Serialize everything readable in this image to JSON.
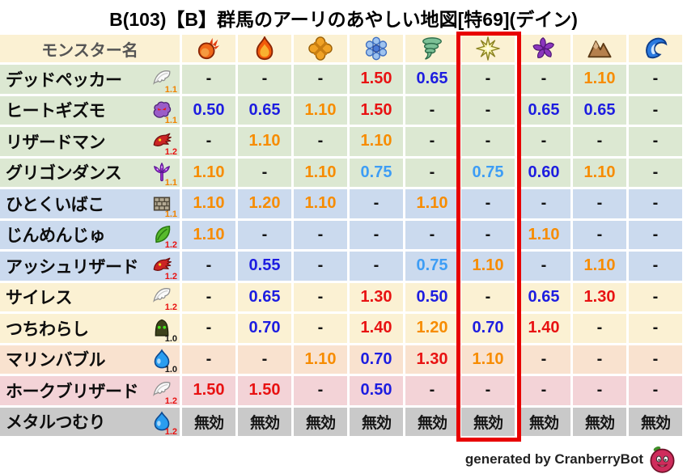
{
  "title": "B(103)【B】群馬のアーリのあやしい地図[特69](デイン)",
  "footer": {
    "credit": "generated by CranberryBot",
    "icon": "cranberry-bot-icon"
  },
  "highlight": {
    "column_index": 6,
    "color": "#e80000"
  },
  "palette": {
    "red": "#e81212",
    "orange": "#f78c00",
    "blue": "#1d1de0",
    "lightblue": "#3d9df5",
    "black": "#141414",
    "ver_orange": "#f08300",
    "ver_red": "#e81212",
    "ver_black": "#1a1a1a",
    "header_bg": "#fbf1d3",
    "group_green": "#dce8d2",
    "group_blue": "#cbdaee",
    "group_cream": "#fbf1d3",
    "group_peach": "#f9e2cf",
    "group_pink": "#f3d3d7",
    "group_gray": "#c9c9c9"
  },
  "table": {
    "name_header": "モンスター名",
    "columns": [
      {
        "icon": "fireball-icon"
      },
      {
        "icon": "flame-icon"
      },
      {
        "icon": "burst-icon"
      },
      {
        "icon": "ice-icon"
      },
      {
        "icon": "wind-icon"
      },
      {
        "icon": "lightning-icon",
        "highlighted": true
      },
      {
        "icon": "dark-pinwheel-icon"
      },
      {
        "icon": "earth-icon"
      },
      {
        "icon": "water-icon"
      }
    ],
    "rows": [
      {
        "name": "デッドペッカー",
        "family_icon": "wing-icon",
        "version": "1.1",
        "version_color": "ver_orange",
        "row_color": "group_green",
        "values": [
          [
            "-",
            "black"
          ],
          [
            "-",
            "black"
          ],
          [
            "-",
            "black"
          ],
          [
            "1.50",
            "red"
          ],
          [
            "0.65",
            "blue"
          ],
          [
            "-",
            "black"
          ],
          [
            "-",
            "black"
          ],
          [
            "1.10",
            "orange"
          ],
          [
            "-",
            "black"
          ]
        ]
      },
      {
        "name": "ヒートギズモ",
        "family_icon": "gizmo-icon",
        "version": "1.1",
        "version_color": "ver_orange",
        "row_color": "group_green",
        "values": [
          [
            "0.50",
            "blue"
          ],
          [
            "0.65",
            "blue"
          ],
          [
            "1.10",
            "orange"
          ],
          [
            "1.50",
            "red"
          ],
          [
            "-",
            "black"
          ],
          [
            "-",
            "black"
          ],
          [
            "0.65",
            "blue"
          ],
          [
            "0.65",
            "blue"
          ],
          [
            "-",
            "black"
          ]
        ]
      },
      {
        "name": "リザードマン",
        "family_icon": "dragon-icon",
        "version": "1.2",
        "version_color": "ver_red",
        "row_color": "group_green",
        "values": [
          [
            "-",
            "black"
          ],
          [
            "1.10",
            "orange"
          ],
          [
            "-",
            "black"
          ],
          [
            "1.10",
            "orange"
          ],
          [
            "-",
            "black"
          ],
          [
            "-",
            "black"
          ],
          [
            "-",
            "black"
          ],
          [
            "-",
            "black"
          ],
          [
            "-",
            "black"
          ]
        ]
      },
      {
        "name": "グリゴンダンス",
        "family_icon": "trident-icon",
        "version": "1.1",
        "version_color": "ver_orange",
        "row_color": "group_green",
        "values": [
          [
            "1.10",
            "orange"
          ],
          [
            "-",
            "black"
          ],
          [
            "1.10",
            "orange"
          ],
          [
            "0.75",
            "lightblue"
          ],
          [
            "-",
            "black"
          ],
          [
            "0.75",
            "lightblue"
          ],
          [
            "0.60",
            "blue"
          ],
          [
            "1.10",
            "orange"
          ],
          [
            "-",
            "black"
          ]
        ]
      },
      {
        "name": "ひとくいばこ",
        "family_icon": "brick-box-icon",
        "version": "1.1",
        "version_color": "ver_orange",
        "row_color": "group_blue",
        "values": [
          [
            "1.10",
            "orange"
          ],
          [
            "1.20",
            "orange"
          ],
          [
            "1.10",
            "orange"
          ],
          [
            "-",
            "black"
          ],
          [
            "1.10",
            "orange"
          ],
          [
            "-",
            "black"
          ],
          [
            "-",
            "black"
          ],
          [
            "-",
            "black"
          ],
          [
            "-",
            "black"
          ]
        ]
      },
      {
        "name": "じんめんじゅ",
        "family_icon": "leaf-icon",
        "version": "1.2",
        "version_color": "ver_red",
        "row_color": "group_blue",
        "values": [
          [
            "1.10",
            "orange"
          ],
          [
            "-",
            "black"
          ],
          [
            "-",
            "black"
          ],
          [
            "-",
            "black"
          ],
          [
            "-",
            "black"
          ],
          [
            "-",
            "black"
          ],
          [
            "1.10",
            "orange"
          ],
          [
            "-",
            "black"
          ],
          [
            "-",
            "black"
          ]
        ]
      },
      {
        "name": "アッシュリザード",
        "family_icon": "dragon-icon",
        "version": "1.2",
        "version_color": "ver_red",
        "row_color": "group_blue",
        "values": [
          [
            "-",
            "black"
          ],
          [
            "0.55",
            "blue"
          ],
          [
            "-",
            "black"
          ],
          [
            "-",
            "black"
          ],
          [
            "0.75",
            "lightblue"
          ],
          [
            "1.10",
            "orange"
          ],
          [
            "-",
            "black"
          ],
          [
            "1.10",
            "orange"
          ],
          [
            "-",
            "black"
          ]
        ]
      },
      {
        "name": "サイレス",
        "family_icon": "wing-icon",
        "version": "1.2",
        "version_color": "ver_red",
        "row_color": "group_cream",
        "values": [
          [
            "-",
            "black"
          ],
          [
            "0.65",
            "blue"
          ],
          [
            "-",
            "black"
          ],
          [
            "1.30",
            "red"
          ],
          [
            "0.50",
            "blue"
          ],
          [
            "-",
            "black"
          ],
          [
            "0.65",
            "blue"
          ],
          [
            "1.30",
            "red"
          ],
          [
            "-",
            "black"
          ]
        ]
      },
      {
        "name": "つちわらし",
        "family_icon": "hood-icon",
        "version": "1.0",
        "version_color": "ver_black",
        "row_color": "group_cream",
        "values": [
          [
            "-",
            "black"
          ],
          [
            "0.70",
            "blue"
          ],
          [
            "-",
            "black"
          ],
          [
            "1.40",
            "red"
          ],
          [
            "1.20",
            "orange"
          ],
          [
            "0.70",
            "blue"
          ],
          [
            "1.40",
            "red"
          ],
          [
            "-",
            "black"
          ],
          [
            "-",
            "black"
          ]
        ]
      },
      {
        "name": "マリンバブル",
        "family_icon": "slime-icon",
        "version": "1.0",
        "version_color": "ver_black",
        "row_color": "group_peach",
        "values": [
          [
            "-",
            "black"
          ],
          [
            "-",
            "black"
          ],
          [
            "1.10",
            "orange"
          ],
          [
            "0.70",
            "blue"
          ],
          [
            "1.30",
            "red"
          ],
          [
            "1.10",
            "orange"
          ],
          [
            "-",
            "black"
          ],
          [
            "-",
            "black"
          ],
          [
            "-",
            "black"
          ]
        ]
      },
      {
        "name": "ホークブリザード",
        "family_icon": "wing-icon",
        "version": "1.2",
        "version_color": "ver_red",
        "row_color": "group_pink",
        "values": [
          [
            "1.50",
            "red"
          ],
          [
            "1.50",
            "red"
          ],
          [
            "-",
            "black"
          ],
          [
            "0.50",
            "blue"
          ],
          [
            "-",
            "black"
          ],
          [
            "-",
            "black"
          ],
          [
            "-",
            "black"
          ],
          [
            "-",
            "black"
          ],
          [
            "-",
            "black"
          ]
        ]
      },
      {
        "name": "メタルつむり",
        "family_icon": "slime-icon",
        "version": "1.2",
        "version_color": "ver_red",
        "row_color": "group_gray",
        "values": [
          [
            "無効",
            "black"
          ],
          [
            "無効",
            "black"
          ],
          [
            "無効",
            "black"
          ],
          [
            "無効",
            "black"
          ],
          [
            "無効",
            "black"
          ],
          [
            "無効",
            "black"
          ],
          [
            "無効",
            "black"
          ],
          [
            "無効",
            "black"
          ],
          [
            "無効",
            "black"
          ]
        ]
      }
    ]
  },
  "chart_data": {
    "type": "table",
    "title": "B(103)【B】群馬のアーリのあやしい地図[特69](デイン)",
    "columns": [
      "fireball",
      "flame",
      "burst",
      "ice",
      "wind",
      "lightning",
      "dark",
      "earth",
      "water"
    ],
    "highlighted_column": "lightning",
    "rows": [
      {
        "monster": "デッドペッカー",
        "version": "1.1",
        "values": [
          "-",
          "-",
          "-",
          "1.50",
          "0.65",
          "-",
          "-",
          "1.10",
          "-"
        ]
      },
      {
        "monster": "ヒートギズモ",
        "version": "1.1",
        "values": [
          "0.50",
          "0.65",
          "1.10",
          "1.50",
          "-",
          "-",
          "0.65",
          "0.65",
          "-"
        ]
      },
      {
        "monster": "リザードマン",
        "version": "1.2",
        "values": [
          "-",
          "1.10",
          "-",
          "1.10",
          "-",
          "-",
          "-",
          "-",
          "-"
        ]
      },
      {
        "monster": "グリゴンダンス",
        "version": "1.1",
        "values": [
          "1.10",
          "-",
          "1.10",
          "0.75",
          "-",
          "0.75",
          "0.60",
          "1.10",
          "-"
        ]
      },
      {
        "monster": "ひとくいばこ",
        "version": "1.1",
        "values": [
          "1.10",
          "1.20",
          "1.10",
          "-",
          "1.10",
          "-",
          "-",
          "-",
          "-"
        ]
      },
      {
        "monster": "じんめんじゅ",
        "version": "1.2",
        "values": [
          "1.10",
          "-",
          "-",
          "-",
          "-",
          "-",
          "1.10",
          "-",
          "-"
        ]
      },
      {
        "monster": "アッシュリザード",
        "version": "1.2",
        "values": [
          "-",
          "0.55",
          "-",
          "-",
          "0.75",
          "1.10",
          "-",
          "1.10",
          "-"
        ]
      },
      {
        "monster": "サイレス",
        "version": "1.2",
        "values": [
          "-",
          "0.65",
          "-",
          "1.30",
          "0.50",
          "-",
          "0.65",
          "1.30",
          "-"
        ]
      },
      {
        "monster": "つちわらし",
        "version": "1.0",
        "values": [
          "-",
          "0.70",
          "-",
          "1.40",
          "1.20",
          "0.70",
          "1.40",
          "-",
          "-"
        ]
      },
      {
        "monster": "マリンバブル",
        "version": "1.0",
        "values": [
          "-",
          "-",
          "1.10",
          "0.70",
          "1.30",
          "1.10",
          "-",
          "-",
          "-"
        ]
      },
      {
        "monster": "ホークブリザード",
        "version": "1.2",
        "values": [
          "1.50",
          "1.50",
          "-",
          "0.50",
          "-",
          "-",
          "-",
          "-",
          "-"
        ]
      },
      {
        "monster": "メタルつむり",
        "version": "1.2",
        "values": [
          "無効",
          "無効",
          "無効",
          "無効",
          "無効",
          "無効",
          "無効",
          "無効",
          "無効"
        ]
      }
    ]
  }
}
